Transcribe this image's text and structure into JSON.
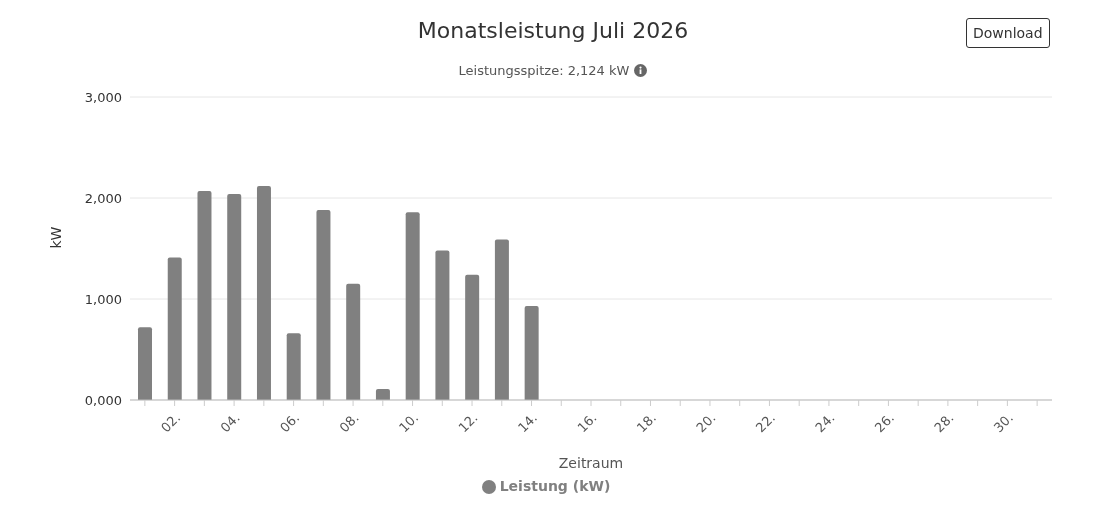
{
  "chart_data": {
    "type": "bar",
    "title": "Monatsleistung Juli 2026",
    "subtitle": "Leistungsspitze: 2,124 kW",
    "xlabel": "Zeitraum",
    "ylabel": "kW",
    "annotations": [
      "Download"
    ],
    "categories": [
      null,
      "02.",
      null,
      "04.",
      null,
      "06.",
      null,
      "08.",
      null,
      "10.",
      null,
      "12.",
      null,
      "14.",
      null,
      "16.",
      null,
      "18.",
      null,
      "20.",
      null,
      "22.",
      null,
      "24.",
      null,
      "26.",
      null,
      "28.",
      null,
      "30.",
      null
    ],
    "series": [
      {
        "name": "Leistung (kW)",
        "color": "#808080",
        "values": [
          720,
          1410,
          2070,
          2040,
          2120,
          660,
          1880,
          1150,
          110,
          1860,
          1480,
          1240,
          1590,
          930,
          null,
          null,
          null,
          null,
          null,
          null,
          null,
          null,
          null,
          null,
          null,
          null,
          null,
          null,
          null,
          null,
          null
        ]
      }
    ],
    "ylim": [
      0,
      3000
    ],
    "yticks": [
      {
        "value": 0,
        "label": "0,000"
      },
      {
        "value": 1000,
        "label": "1,000"
      },
      {
        "value": 2000,
        "label": "2,000"
      },
      {
        "value": 3000,
        "label": "3,000"
      }
    ],
    "grid": "y",
    "legend": "bottom"
  }
}
